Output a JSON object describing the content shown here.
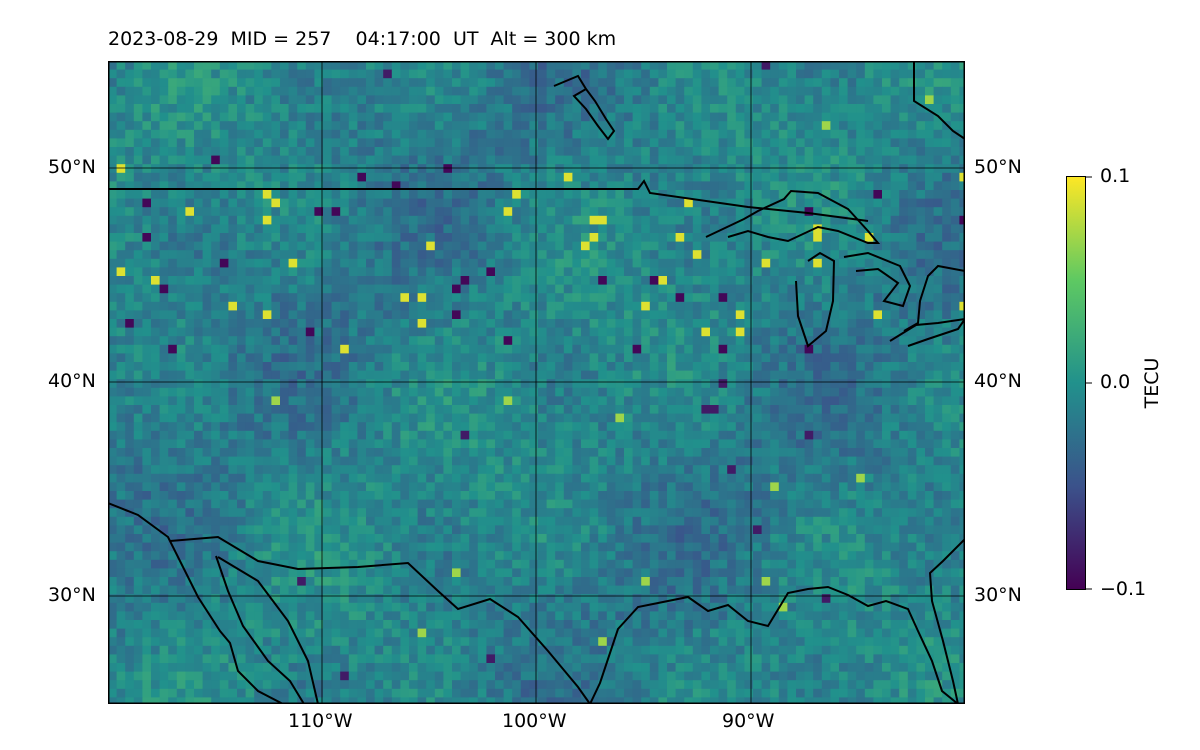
{
  "title": "2023-08-29  MID = 257    04:17:00  UT  Alt = 300 km",
  "map": {
    "lon_range": [
      -120,
      -80
    ],
    "lat_range": [
      25,
      55
    ],
    "projection": "plate-carree",
    "gridlines": true,
    "field": "TEC perturbation",
    "lat_labels": [
      "50°N",
      "40°N",
      "30°N"
    ],
    "lon_labels": [
      "110°W",
      "100°W",
      "90°W"
    ]
  },
  "colorbar": {
    "label": "TECU",
    "colormap": "viridis",
    "min": -0.1,
    "max": 0.1,
    "tick_labels": [
      "0.1",
      "0.0",
      "−0.1"
    ],
    "colors": [
      "#440154",
      "#3b528b",
      "#21918c",
      "#5ec962",
      "#fde725"
    ]
  }
}
